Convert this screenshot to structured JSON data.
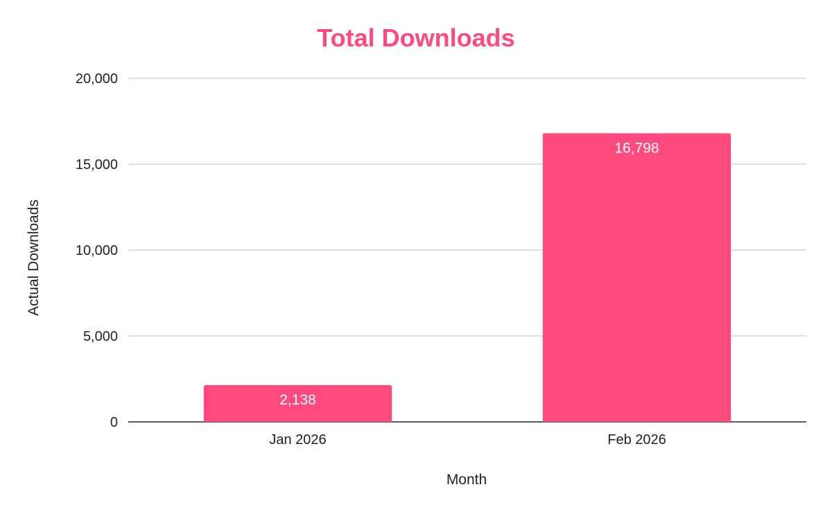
{
  "chart_data": {
    "type": "bar",
    "title": "Total Downloads",
    "xlabel": "Month",
    "ylabel": "Actual Downloads",
    "categories": [
      "Jan 2026",
      "Feb 2026"
    ],
    "series": [
      {
        "values": [
          2138,
          16798
        ],
        "data_labels": [
          "2,138",
          "16,798"
        ]
      }
    ],
    "ylim": [
      0,
      20000
    ],
    "yticks": [
      0,
      5000,
      10000,
      15000,
      20000
    ],
    "ytick_labels": [
      "0",
      "5,000",
      "10,000",
      "15,000",
      "20,000"
    ],
    "grid": true,
    "legend": "none"
  },
  "colors": {
    "title": "#ff4a7d",
    "bar": "#ff4a7d",
    "gridline": "#cccccc",
    "baseline": "#222222",
    "data_label": "#ffffff"
  }
}
